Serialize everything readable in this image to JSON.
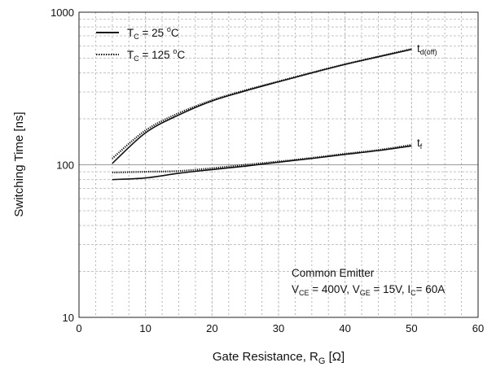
{
  "chart_data": {
    "type": "line",
    "xlabel": "Gate Resistance, R",
    "xlabel_sub": "G",
    "xlabel_unit": " [Ω]",
    "ylabel": "Switching Time [ns]",
    "xlim": [
      0,
      60
    ],
    "ylim": [
      10,
      1000
    ],
    "yscale": "log",
    "grid": true,
    "x_ticks": [
      0,
      10,
      20,
      30,
      40,
      50,
      60
    ],
    "y_ticks": [
      10,
      100,
      1000
    ],
    "legend_position": "top-left",
    "legend": [
      {
        "prefix": "T",
        "sub": "C",
        "text": " = 25 ",
        "sup": "o",
        "unit": "C",
        "style": "solid"
      },
      {
        "prefix": "T",
        "sub": "C",
        "text": " = 125 ",
        "sup": "o",
        "unit": "C",
        "style": "dotted"
      }
    ],
    "annotation": {
      "line1": "Common Emitter",
      "line2": [
        {
          "t": "V"
        },
        {
          "sub": "CE"
        },
        {
          "t": " = 400V, V"
        },
        {
          "sub": "GE"
        },
        {
          "t": " = 15V, I"
        },
        {
          "sub": "C"
        },
        {
          "t": "= 60A"
        }
      ]
    },
    "series": [
      {
        "name": "T_C = 25 °C",
        "curve": "t_d(off)",
        "style": "solid",
        "x": [
          5,
          10,
          15,
          20,
          25,
          30,
          35,
          40,
          45,
          50
        ],
        "y": [
          102,
          162,
          212,
          262,
          305,
          350,
          400,
          455,
          510,
          570
        ]
      },
      {
        "name": "T_C = 125 °C",
        "curve": "t_d(off)",
        "style": "dotted",
        "x": [
          5,
          10,
          15,
          20,
          25,
          30,
          35,
          40,
          45,
          50
        ],
        "y": [
          110,
          168,
          218,
          265,
          308,
          352,
          402,
          456,
          512,
          575
        ]
      },
      {
        "name": "T_C = 25 °C",
        "curve": "t_f",
        "style": "solid",
        "x": [
          5,
          10,
          15,
          20,
          25,
          30,
          35,
          40,
          45,
          50
        ],
        "y": [
          80,
          82,
          88,
          93,
          98,
          104,
          110,
          117,
          124,
          133
        ]
      },
      {
        "name": "T_C = 125 °C",
        "curve": "t_f",
        "style": "dotted",
        "x": [
          5,
          10,
          15,
          20,
          25,
          30,
          35,
          40,
          45,
          50
        ],
        "y": [
          89,
          90,
          91,
          95,
          100,
          105,
          111,
          118,
          125,
          135
        ]
      }
    ],
    "curve_labels": [
      {
        "id": "t_d(off)",
        "main": "t",
        "sub": "d(off)"
      },
      {
        "id": "t_f",
        "main": "t",
        "sub": "f"
      }
    ]
  }
}
